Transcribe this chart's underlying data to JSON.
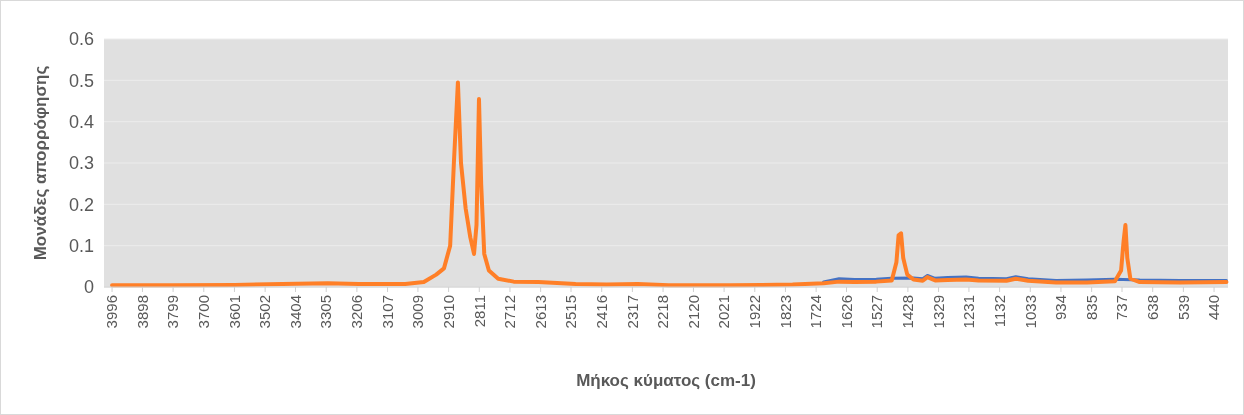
{
  "chart_data": {
    "type": "line",
    "xlabel": "Μήκος κύματος (cm-1)",
    "ylabel": "Μονάδες απορρόφησης",
    "xlim": [
      4022,
      395
    ],
    "xticks": [
      3996,
      3898,
      3799,
      3700,
      3601,
      3502,
      3404,
      3305,
      3206,
      3107,
      3009,
      2910,
      2811,
      2712,
      2613,
      2515,
      2416,
      2317,
      2218,
      2120,
      2021,
      1922,
      1823,
      1724,
      1626,
      1527,
      1428,
      1329,
      1231,
      1132,
      1033,
      934,
      835,
      737,
      638,
      539,
      440
    ],
    "ylim": [
      0,
      0.6
    ],
    "yticks": [
      0,
      0.1,
      0.2,
      0.3,
      0.4,
      0.5,
      0.6
    ],
    "grid": "y",
    "marker": "none",
    "line_style": "solid",
    "series": [
      {
        "color": "#4472c4",
        "x": [
          1700,
          1650,
          1600,
          1530,
          1480,
          1410,
          1380,
          1365,
          1340,
          1300,
          1240,
          1200,
          1110,
          1080,
          1040,
          950,
          850,
          760,
          680,
          550,
          400
        ],
        "values": [
          0.012,
          0.02,
          0.018,
          0.019,
          0.021,
          0.022,
          0.02,
          0.028,
          0.021,
          0.023,
          0.024,
          0.021,
          0.02,
          0.025,
          0.02,
          0.016,
          0.017,
          0.019,
          0.017,
          0.016,
          0.016
        ]
      },
      {
        "color": "#ff7f27",
        "x": [
          3996,
          3800,
          3600,
          3400,
          3300,
          3200,
          3050,
          2990,
          2950,
          2925,
          2905,
          2893,
          2880,
          2870,
          2855,
          2840,
          2828,
          2820,
          2812,
          2805,
          2795,
          2780,
          2750,
          2700,
          2620,
          2500,
          2400,
          2300,
          2200,
          2100,
          2000,
          1900,
          1800,
          1700,
          1650,
          1600,
          1530,
          1480,
          1465,
          1458,
          1450,
          1443,
          1430,
          1410,
          1380,
          1365,
          1340,
          1300,
          1240,
          1200,
          1110,
          1080,
          1040,
          950,
          850,
          760,
          740,
          732,
          726,
          720,
          710,
          680,
          550,
          400
        ],
        "values": [
          0.004,
          0.004,
          0.005,
          0.008,
          0.009,
          0.007,
          0.007,
          0.012,
          0.03,
          0.045,
          0.1,
          0.3,
          0.495,
          0.3,
          0.19,
          0.12,
          0.08,
          0.15,
          0.455,
          0.25,
          0.08,
          0.04,
          0.02,
          0.013,
          0.012,
          0.007,
          0.006,
          0.007,
          0.004,
          0.004,
          0.004,
          0.005,
          0.006,
          0.009,
          0.013,
          0.012,
          0.013,
          0.016,
          0.06,
          0.125,
          0.13,
          0.07,
          0.03,
          0.018,
          0.015,
          0.024,
          0.016,
          0.017,
          0.018,
          0.016,
          0.015,
          0.02,
          0.015,
          0.011,
          0.011,
          0.014,
          0.04,
          0.11,
          0.15,
          0.07,
          0.02,
          0.012,
          0.011,
          0.012
        ]
      }
    ]
  }
}
